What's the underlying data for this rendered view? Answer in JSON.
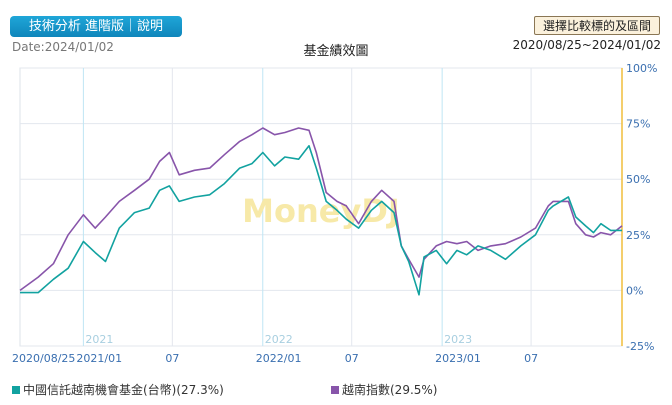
{
  "header": {
    "tab_label": "技術分析 進階版｜說明",
    "date_label": "Date:2024/01/02",
    "compare_button": "選擇比較標的及區間",
    "range_label": "2020/08/25~2024/01/02"
  },
  "chart_data": {
    "type": "line",
    "title": "基金績效圖",
    "watermark": "MoneyDJ",
    "x_tick_labels": [
      "2020/08/25",
      "2021/01",
      "07",
      "2022/01",
      "07",
      "2023/01",
      "07"
    ],
    "year_labels": [
      "2021",
      "2022",
      "2023"
    ],
    "y_tick_labels": [
      "100%",
      "75%",
      "50%",
      "25%",
      "0%",
      "-25%"
    ],
    "ylim": [
      -25,
      100
    ],
    "grid": true,
    "colors": {
      "fund": "#12a2a0",
      "index": "#8855aa",
      "axis": "#f0bd3c"
    },
    "series": [
      {
        "name": "中國信託越南機會基金(台幣)(27.3%)",
        "x": [
          "2020-08-25",
          "2020-10-01",
          "2020-11-01",
          "2020-12-01",
          "2021-01-01",
          "2021-01-25",
          "2021-02-15",
          "2021-03-15",
          "2021-04-15",
          "2021-05-15",
          "2021-06-05",
          "2021-06-25",
          "2021-07-15",
          "2021-08-15",
          "2021-09-15",
          "2021-10-15",
          "2021-11-15",
          "2021-12-10",
          "2022-01-01",
          "2022-01-25",
          "2022-02-15",
          "2022-03-15",
          "2022-04-05",
          "2022-04-20",
          "2022-05-10",
          "2022-06-01",
          "2022-06-20",
          "2022-07-15",
          "2022-08-10",
          "2022-08-31",
          "2022-09-25",
          "2022-10-10",
          "2022-10-25",
          "2022-11-15",
          "2022-11-25",
          "2022-12-20",
          "2023-01-10",
          "2023-01-31",
          "2023-02-20",
          "2023-03-15",
          "2023-04-10",
          "2023-05-10",
          "2023-06-10",
          "2023-07-10",
          "2023-08-05",
          "2023-08-15",
          "2023-09-15",
          "2023-09-30",
          "2023-10-20",
          "2023-11-05",
          "2023-11-20",
          "2023-12-10",
          "2024-01-02"
        ],
        "values": [
          -1,
          -1,
          5,
          10,
          22,
          17,
          13,
          28,
          35,
          37,
          45,
          47,
          40,
          42,
          43,
          48,
          55,
          57,
          62,
          56,
          60,
          59,
          65,
          55,
          40,
          36,
          32,
          28,
          36,
          40,
          35,
          20,
          13,
          -2,
          15,
          18,
          12,
          18,
          16,
          20,
          18,
          14,
          20,
          25,
          36,
          38,
          42,
          33,
          29,
          26,
          30,
          27,
          27
        ]
      },
      {
        "name": "越南指數(29.5%)",
        "x": [
          "2020-08-25",
          "2020-10-01",
          "2020-11-01",
          "2020-12-01",
          "2021-01-01",
          "2021-01-25",
          "2021-02-15",
          "2021-03-15",
          "2021-04-15",
          "2021-05-15",
          "2021-06-05",
          "2021-06-25",
          "2021-07-15",
          "2021-08-15",
          "2021-09-15",
          "2021-10-15",
          "2021-11-15",
          "2021-12-10",
          "2022-01-01",
          "2022-01-25",
          "2022-02-15",
          "2022-03-15",
          "2022-04-05",
          "2022-04-20",
          "2022-05-10",
          "2022-06-01",
          "2022-06-20",
          "2022-07-15",
          "2022-08-10",
          "2022-08-31",
          "2022-09-25",
          "2022-10-10",
          "2022-10-25",
          "2022-11-15",
          "2022-11-25",
          "2022-12-20",
          "2023-01-10",
          "2023-01-31",
          "2023-02-20",
          "2023-03-15",
          "2023-04-10",
          "2023-05-10",
          "2023-06-10",
          "2023-07-10",
          "2023-08-05",
          "2023-08-15",
          "2023-09-15",
          "2023-09-30",
          "2023-10-20",
          "2023-11-05",
          "2023-11-20",
          "2023-12-10",
          "2024-01-02"
        ],
        "values": [
          0,
          6,
          12,
          25,
          34,
          28,
          33,
          40,
          45,
          50,
          58,
          62,
          52,
          54,
          55,
          61,
          67,
          70,
          73,
          70,
          71,
          73,
          72,
          62,
          44,
          40,
          38,
          30,
          40,
          45,
          40,
          20,
          14,
          6,
          14,
          20,
          22,
          21,
          22,
          18,
          20,
          21,
          24,
          28,
          38,
          40,
          40,
          30,
          25,
          24,
          26,
          25,
          29
        ]
      }
    ]
  }
}
